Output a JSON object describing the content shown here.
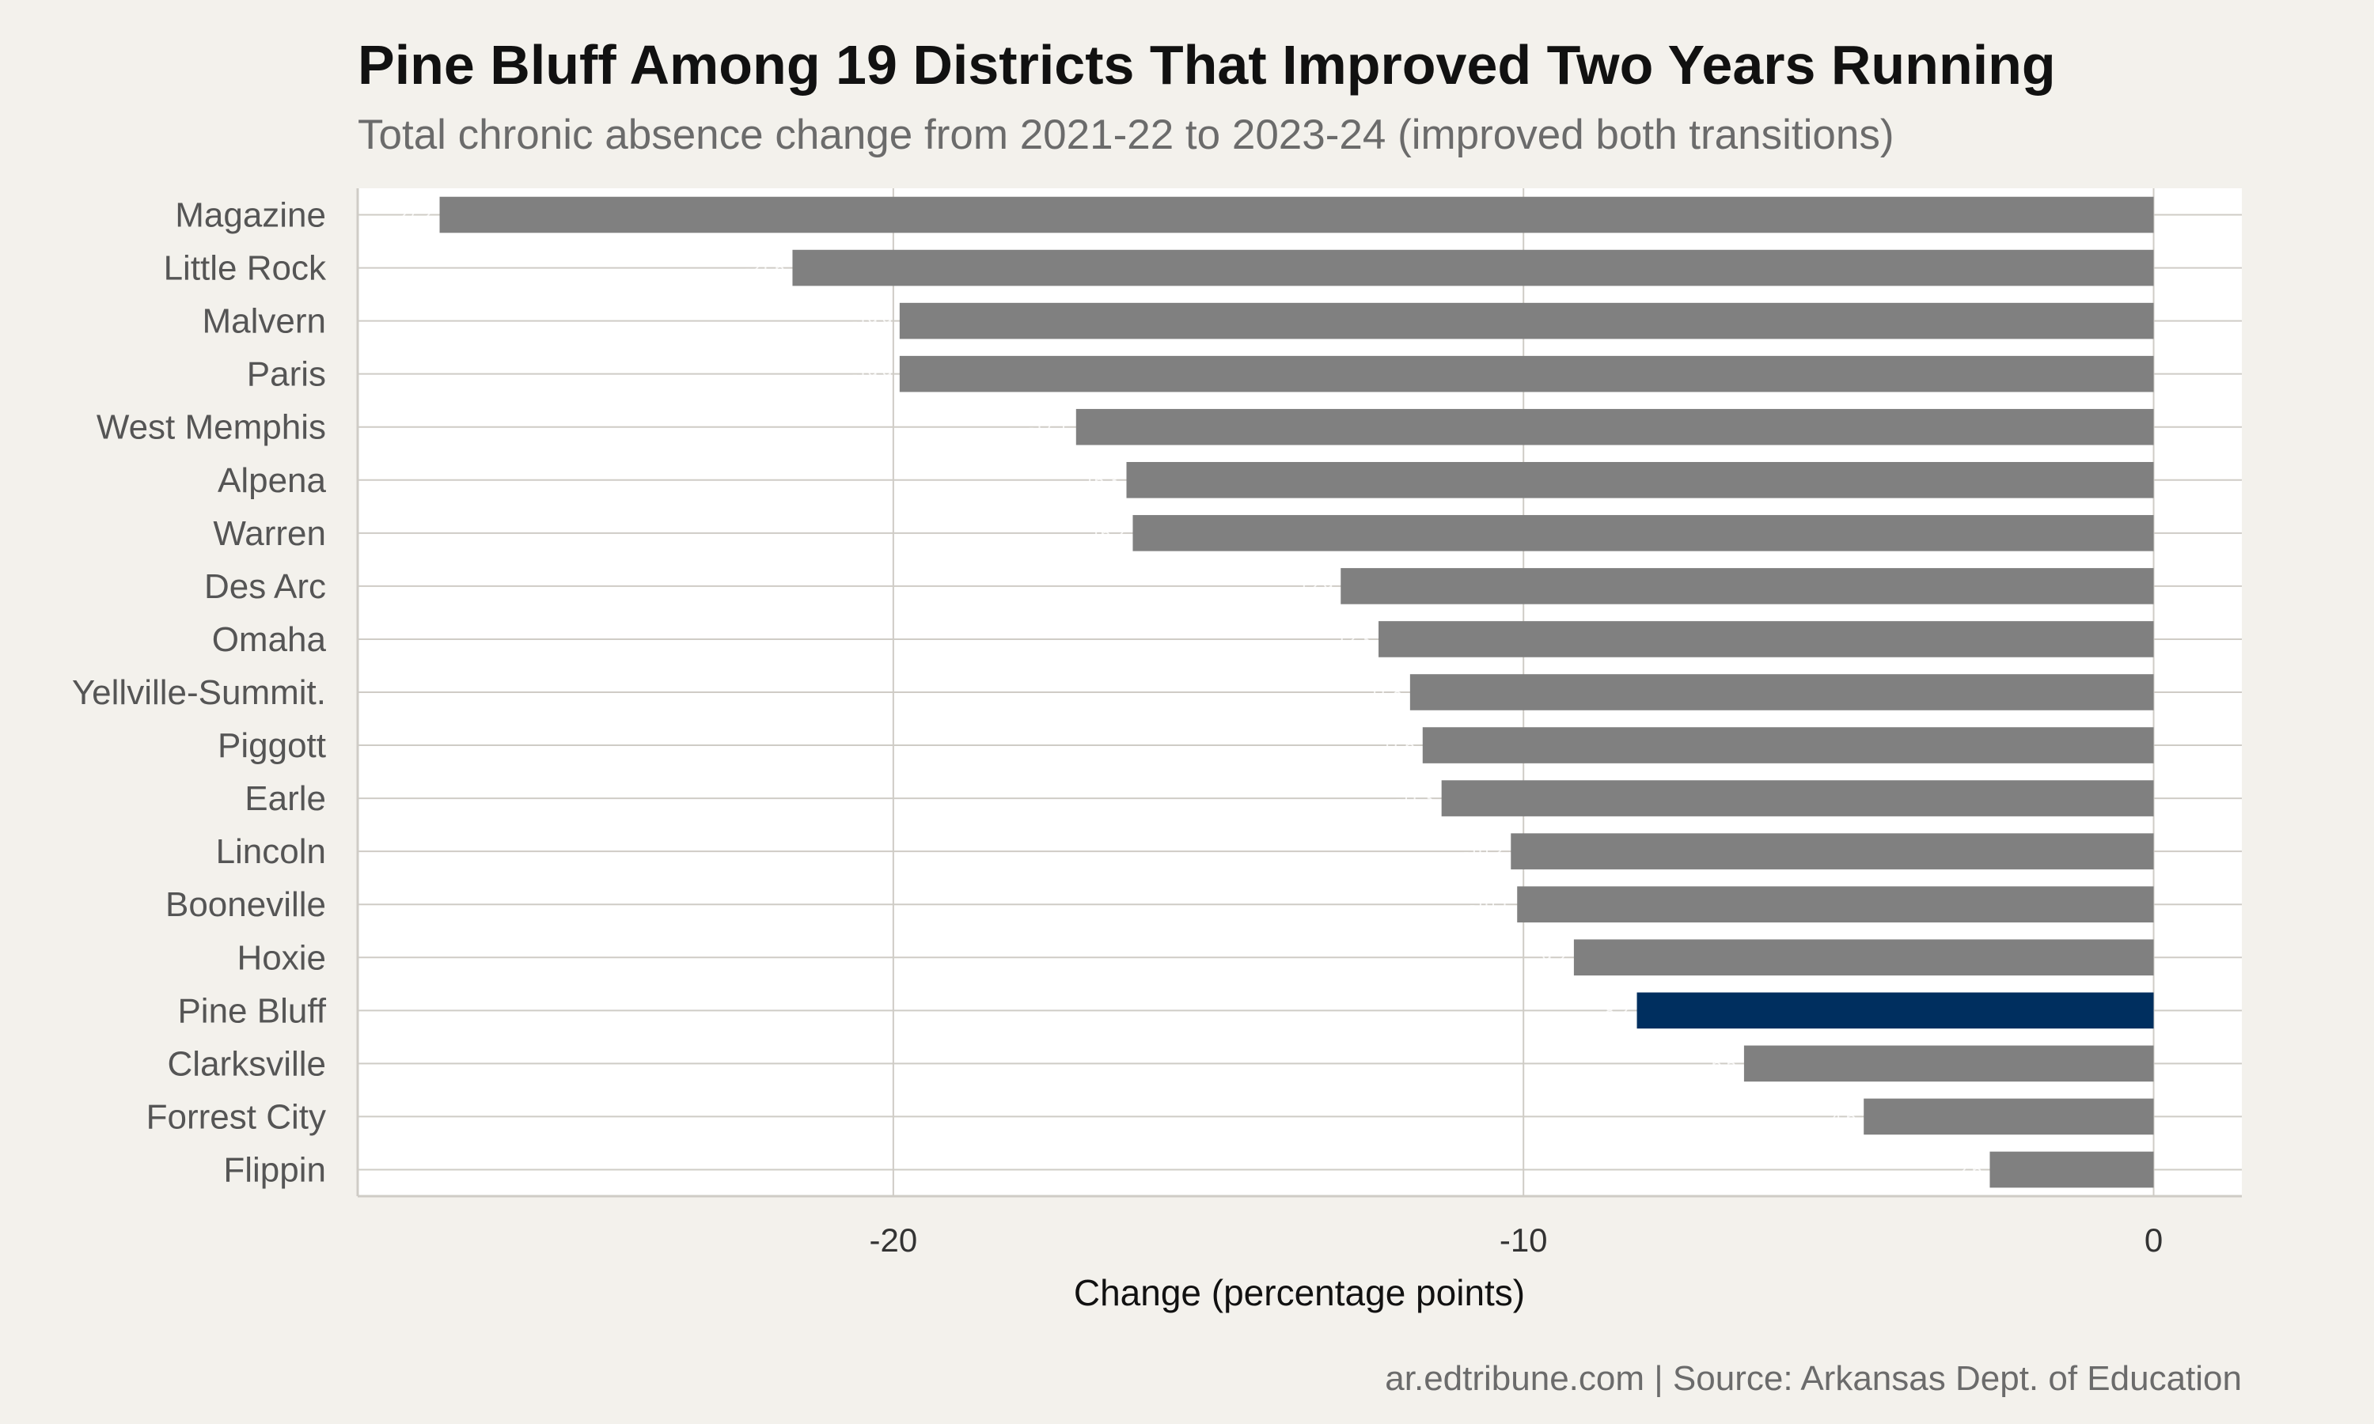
{
  "chart_data": {
    "type": "bar",
    "orientation": "horizontal",
    "title": "Pine Bluff Among 19 Districts That Improved Two Years Running",
    "subtitle": "Total chronic absence change from 2021-22 to 2023-24 (improved both transitions)",
    "caption": "ar.edtribune.com | Source: Arkansas Dept. of Education",
    "xlabel": "Change (percentage points)",
    "ylabel": "",
    "xlim": [
      -28.5,
      1.4
    ],
    "xticks": [
      {
        "value": -20,
        "label": "-20"
      },
      {
        "value": -10,
        "label": "-10"
      },
      {
        "value": 0,
        "label": "0"
      }
    ],
    "grid": true,
    "categories": [
      "Magazine",
      "Little Rock",
      "Malvern",
      "Paris",
      "West Memphis",
      "Alpena",
      "Warren",
      "Des Arc",
      "Omaha",
      "Yellville-Summit.",
      "Piggott",
      "Earle",
      "Lincoln",
      "Booneville",
      "Hoxie",
      "Pine Bluff",
      "Clarksville",
      "Forrest City",
      "Flippin"
    ],
    "values": [
      -27.2,
      -21.6,
      -19.9,
      -19.9,
      -17.1,
      -16.3,
      -16.2,
      -12.9,
      -12.3,
      -11.8,
      -11.6,
      -11.3,
      -10.2,
      -10.1,
      -9.2,
      -8.2,
      -6.5,
      -4.6,
      -2.6
    ],
    "highlight": "Pine Bluff",
    "colors": {
      "bar": "#808080",
      "highlight": "#002f5f",
      "panel": "#ffffff",
      "grid": "#cfccc6",
      "background": "#f3f1ec"
    }
  }
}
